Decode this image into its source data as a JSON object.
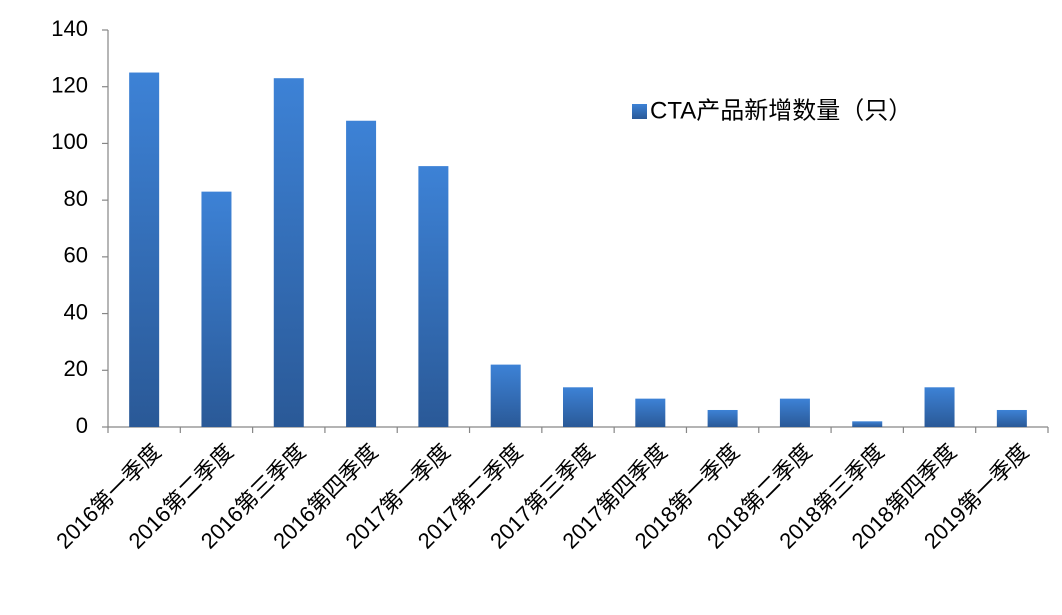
{
  "chart_data": {
    "type": "bar",
    "categories": [
      "2016第一季度",
      "2016第二季度",
      "2016第三季度",
      "2016第四季度",
      "2017第一季度",
      "2017第二季度",
      "2017第三季度",
      "2017第四季度",
      "2018第一季度",
      "2018第二季度",
      "2018第三季度",
      "2018第四季度",
      "2019第一季度"
    ],
    "series": [
      {
        "name": "CTA产品新增数量（只）",
        "color": "#3a7bcc",
        "values": [
          125,
          83,
          123,
          108,
          92,
          22,
          14,
          10,
          6,
          10,
          2,
          14,
          6
        ]
      }
    ],
    "ylim": [
      0,
      140
    ],
    "yticks": [
      0,
      20,
      40,
      60,
      80,
      100,
      120,
      140
    ],
    "grid": false,
    "legend": "top-right"
  }
}
